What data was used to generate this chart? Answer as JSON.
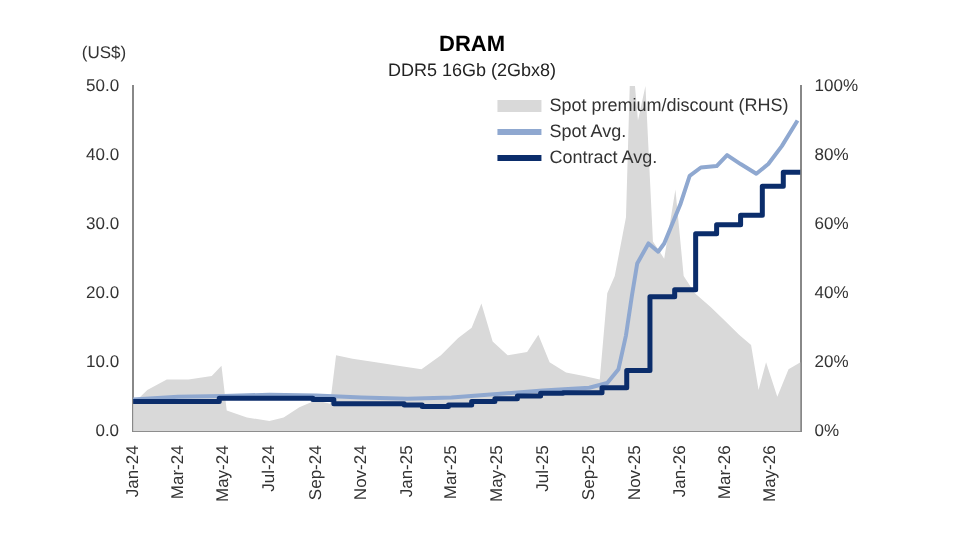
{
  "chart_data": {
    "type": "line",
    "title": "DRAM",
    "subtitle": "DDR5 16Gb (2Gbx8)",
    "ylabel": "(US$)",
    "xlim": [
      "2024-01-01",
      "2026-06-10"
    ],
    "xticks": [
      {
        "value": "2024-01-01",
        "label": "Jan-24"
      },
      {
        "value": "2024-03-01",
        "label": "Mar-24"
      },
      {
        "value": "2024-05-01",
        "label": "May-24"
      },
      {
        "value": "2024-07-01",
        "label": "Jul-24"
      },
      {
        "value": "2024-09-01",
        "label": "Sep-24"
      },
      {
        "value": "2024-11-01",
        "label": "Nov-24"
      },
      {
        "value": "2025-01-01",
        "label": "Jan-25"
      },
      {
        "value": "2025-03-01",
        "label": "Mar-25"
      },
      {
        "value": "2025-05-01",
        "label": "May-25"
      },
      {
        "value": "2025-07-01",
        "label": "Jul-25"
      },
      {
        "value": "2025-09-01",
        "label": "Sep-25"
      },
      {
        "value": "2025-11-01",
        "label": "Nov-25"
      },
      {
        "value": "2026-01-01",
        "label": "Jan-26"
      },
      {
        "value": "2026-03-01",
        "label": "Mar-26"
      },
      {
        "value": "2026-05-01",
        "label": "May-26"
      }
    ],
    "ylim": [
      0,
      50
    ],
    "yticks": [
      {
        "value": 0,
        "label": "0.0"
      },
      {
        "value": 10,
        "label": "10.0"
      },
      {
        "value": 20,
        "label": "20.0"
      },
      {
        "value": 30,
        "label": "30.0"
      },
      {
        "value": 40,
        "label": "40.0"
      },
      {
        "value": 50,
        "label": "50.0"
      }
    ],
    "y2lim": [
      0,
      100
    ],
    "y2ticks": [
      {
        "value": 0,
        "label": "0%"
      },
      {
        "value": 20,
        "label": "20%"
      },
      {
        "value": 40,
        "label": "40%"
      },
      {
        "value": 60,
        "label": "60%"
      },
      {
        "value": 80,
        "label": "80%"
      },
      {
        "value": 100,
        "label": "100%"
      }
    ],
    "grid": false,
    "legend": "top right",
    "series": [
      {
        "name": "Spot premium/discount (RHS)",
        "type": "area",
        "axis": "y2",
        "color": "#d9d9d9",
        "x": [
          "2024-01-01",
          "2024-01-20",
          "2024-02-15",
          "2024-03-15",
          "2024-04-15",
          "2024-04-28",
          "2024-05-05",
          "2024-06-01",
          "2024-07-01",
          "2024-07-20",
          "2024-08-10",
          "2024-09-01",
          "2024-09-20",
          "2024-09-28",
          "2024-10-20",
          "2024-11-20",
          "2024-12-20",
          "2025-01-20",
          "2025-02-15",
          "2025-03-10",
          "2025-03-28",
          "2025-04-10",
          "2025-04-25",
          "2025-05-15",
          "2025-06-10",
          "2025-06-25",
          "2025-07-10",
          "2025-08-01",
          "2025-08-25",
          "2025-09-15",
          "2025-09-25",
          "2025-10-05",
          "2025-10-20",
          "2025-10-25",
          "2025-11-01",
          "2025-11-05",
          "2025-11-15",
          "2025-11-25",
          "2025-12-10",
          "2025-12-25",
          "2026-01-05",
          "2026-01-20",
          "2026-02-10",
          "2026-03-01",
          "2026-03-20",
          "2026-04-05",
          "2026-04-15",
          "2026-04-25",
          "2026-05-10",
          "2026-05-25",
          "2026-06-10"
        ],
        "values": [
          8,
          12,
          15,
          15,
          16,
          19,
          6,
          4,
          3,
          4,
          7,
          9,
          8,
          22,
          21,
          20,
          19,
          18,
          22,
          27,
          30,
          37,
          26,
          22,
          23,
          28,
          20,
          17,
          16,
          15,
          40,
          45,
          62,
          100,
          100,
          90,
          100,
          55,
          50,
          70,
          45,
          40,
          36,
          32,
          28,
          25,
          12,
          20,
          10,
          18,
          20
        ]
      },
      {
        "name": "Spot Avg.",
        "type": "line",
        "color": "#8fa8d0",
        "x": [
          "2024-01-01",
          "2024-03-01",
          "2024-05-01",
          "2024-07-01",
          "2024-09-01",
          "2024-11-01",
          "2025-01-01",
          "2025-03-01",
          "2025-05-01",
          "2025-07-01",
          "2025-09-01",
          "2025-09-25",
          "2025-10-10",
          "2025-10-20",
          "2025-10-28",
          "2025-11-04",
          "2025-11-19",
          "2025-12-02",
          "2025-12-10",
          "2026-01-01",
          "2026-01-13",
          "2026-01-28",
          "2026-02-18",
          "2026-03-04",
          "2026-03-22",
          "2026-04-12",
          "2026-04-28",
          "2026-05-16",
          "2026-06-06"
        ],
        "values": [
          4.6,
          5,
          5.1,
          5.3,
          5.2,
          4.9,
          4.7,
          4.9,
          5.4,
          5.9,
          6.3,
          7,
          9,
          13.9,
          19.7,
          24.3,
          27.2,
          26,
          27.2,
          33,
          37,
          38.2,
          38.4,
          40,
          38.7,
          37.3,
          38.7,
          41.3,
          45
        ]
      },
      {
        "name": "Contract Avg.",
        "type": "step",
        "color": "#0b2d6b",
        "x": [
          "2024-01-01",
          "2024-04-25",
          "2024-08-28",
          "2024-09-25",
          "2024-12-28",
          "2025-01-21",
          "2025-02-25",
          "2025-03-28",
          "2025-04-28",
          "2025-05-28",
          "2025-06-28",
          "2025-07-28",
          "2025-09-18",
          "2025-10-21",
          "2025-11-21",
          "2025-12-24",
          "2026-01-21",
          "2026-02-18",
          "2026-03-22",
          "2026-04-20",
          "2026-05-18",
          "2026-06-10"
        ],
        "values": [
          4.3,
          4.8,
          4.6,
          4.0,
          3.8,
          3.6,
          3.8,
          4.3,
          4.7,
          5.1,
          5.5,
          5.6,
          6.3,
          8.8,
          19.5,
          20.5,
          28.6,
          29.9,
          31.3,
          35.5,
          37.5,
          37.5
        ]
      }
    ]
  }
}
